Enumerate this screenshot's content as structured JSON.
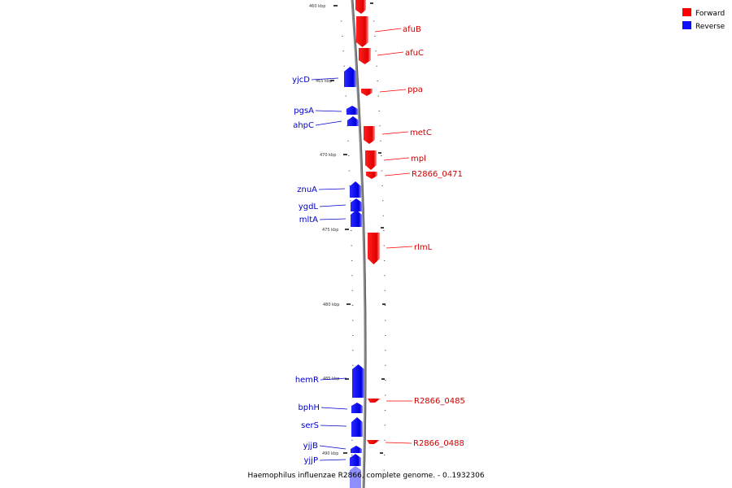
{
  "caption": "Haemophilus influenzae R2866, complete genome. - 0..1932306",
  "legend": [
    {
      "label": "Forward",
      "color": "#ff0000"
    },
    {
      "label": "Reverse",
      "color": "#1010ff"
    }
  ],
  "axis": {
    "unit": "kbp",
    "ticks": [
      "460 kbp",
      "465 kbp",
      "470 kbp",
      "475 kbp",
      "480 kbp",
      "485 kbp",
      "490 kbp"
    ]
  },
  "genes": [
    {
      "name": "afuB",
      "strand": "forward"
    },
    {
      "name": "afuC",
      "strand": "forward"
    },
    {
      "name": "yjcD",
      "strand": "reverse"
    },
    {
      "name": "ppa",
      "strand": "forward"
    },
    {
      "name": "pgsA",
      "strand": "reverse"
    },
    {
      "name": "ahpC",
      "strand": "reverse"
    },
    {
      "name": "metC",
      "strand": "forward"
    },
    {
      "name": "mpl",
      "strand": "forward"
    },
    {
      "name": "R2866_0471",
      "strand": "forward"
    },
    {
      "name": "znuA",
      "strand": "reverse"
    },
    {
      "name": "ygdL",
      "strand": "reverse"
    },
    {
      "name": "mltA",
      "strand": "reverse"
    },
    {
      "name": "rlmL",
      "strand": "forward"
    },
    {
      "name": "hemR",
      "strand": "reverse"
    },
    {
      "name": "bphH",
      "strand": "reverse"
    },
    {
      "name": "serS",
      "strand": "reverse"
    },
    {
      "name": "R2866_0485",
      "strand": "forward"
    },
    {
      "name": "R2866_0488",
      "strand": "forward"
    },
    {
      "name": "yjjB",
      "strand": "reverse"
    },
    {
      "name": "yjjP",
      "strand": "reverse"
    }
  ]
}
